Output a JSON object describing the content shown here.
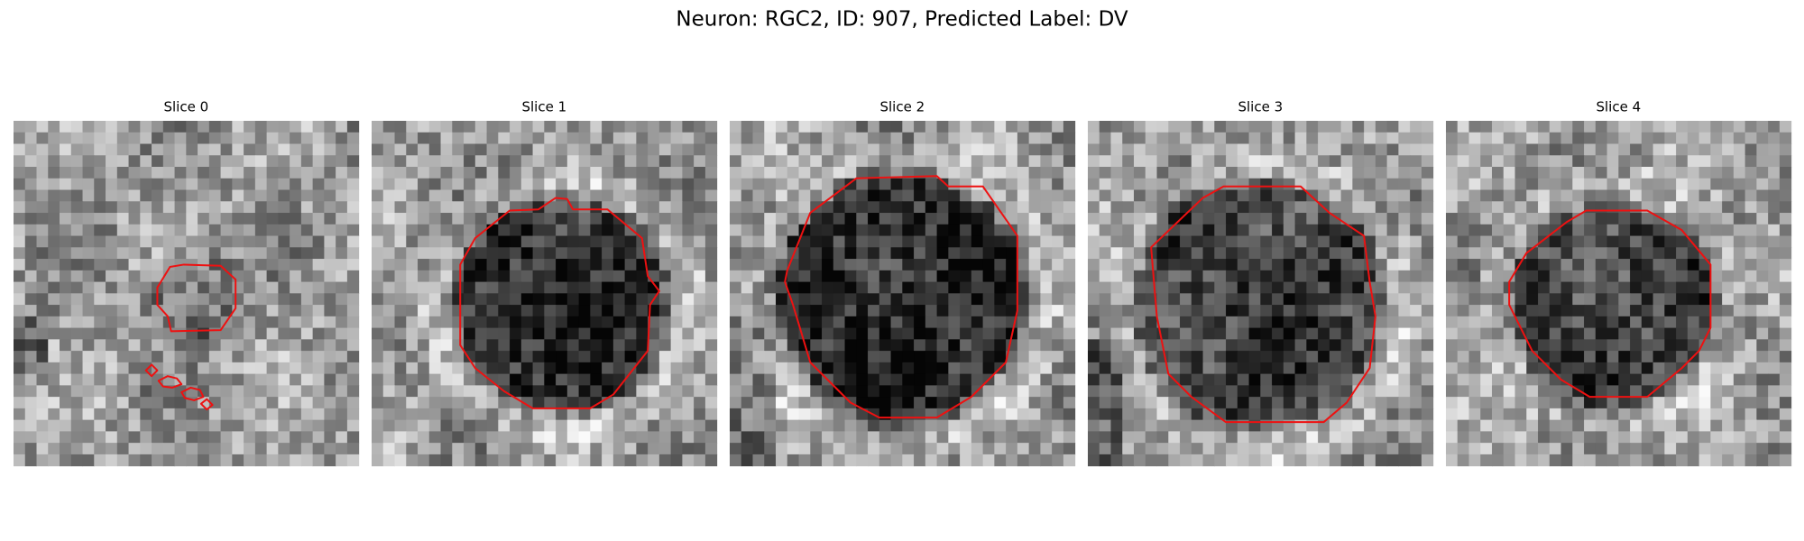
{
  "title": "Neuron: RGC2, ID: 907, Predicted Label: DV",
  "panels": [
    {
      "title": "Slice 0"
    },
    {
      "title": "Slice 1"
    },
    {
      "title": "Slice 2"
    },
    {
      "title": "Slice 3"
    },
    {
      "title": "Slice 4"
    }
  ]
}
